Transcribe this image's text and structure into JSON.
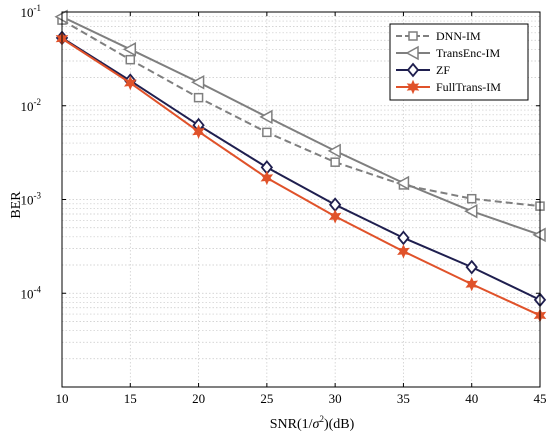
{
  "chart_data": {
    "type": "line",
    "xlabel": "SNR(1/σ²)(dB)",
    "xlabel_parts": {
      "pre": "SNR(1/",
      "sigma": "σ",
      "sup": "2",
      "post": ")(dB)"
    },
    "ylabel": "BER",
    "x": [
      10,
      15,
      20,
      25,
      30,
      35,
      40,
      45
    ],
    "xlim": [
      10,
      45
    ],
    "ylim": [
      1e-05,
      0.1
    ],
    "yscale": "log",
    "x_ticks": [
      "10",
      "15",
      "20",
      "25",
      "30",
      "35",
      "40",
      "45"
    ],
    "y_ticks": [
      {
        "value": 0.1,
        "base": "10",
        "exp": "-1"
      },
      {
        "value": 0.01,
        "base": "10",
        "exp": "-2"
      },
      {
        "value": 0.001,
        "base": "10",
        "exp": "-3"
      },
      {
        "value": 0.0001,
        "base": "10",
        "exp": "-4"
      }
    ],
    "grid": true,
    "legend_position": "top-right",
    "series": [
      {
        "name": "DNN-IM",
        "color": "#7f7f7f",
        "dashed": true,
        "marker": "square",
        "values": [
          0.082,
          0.031,
          0.0122,
          0.0052,
          0.0025,
          0.00143,
          0.00102,
          0.00085
        ]
      },
      {
        "name": "TransEnc-IM",
        "color": "#7f7f7f",
        "dashed": false,
        "marker": "triangle-left",
        "values": [
          0.089,
          0.04,
          0.0178,
          0.0076,
          0.0033,
          0.0015,
          0.00075,
          0.00042
        ]
      },
      {
        "name": "ZF",
        "color": "#1f1f4f",
        "dashed": false,
        "marker": "diamond",
        "values": [
          0.053,
          0.0185,
          0.0062,
          0.0022,
          0.00088,
          0.00039,
          0.00019,
          8.5e-05
        ]
      },
      {
        "name": "FullTrans-IM",
        "color": "#e0522a",
        "dashed": false,
        "marker": "hexagram",
        "values": [
          0.052,
          0.0175,
          0.0053,
          0.0017,
          0.00066,
          0.00028,
          0.000125,
          5.8e-05
        ]
      }
    ]
  }
}
